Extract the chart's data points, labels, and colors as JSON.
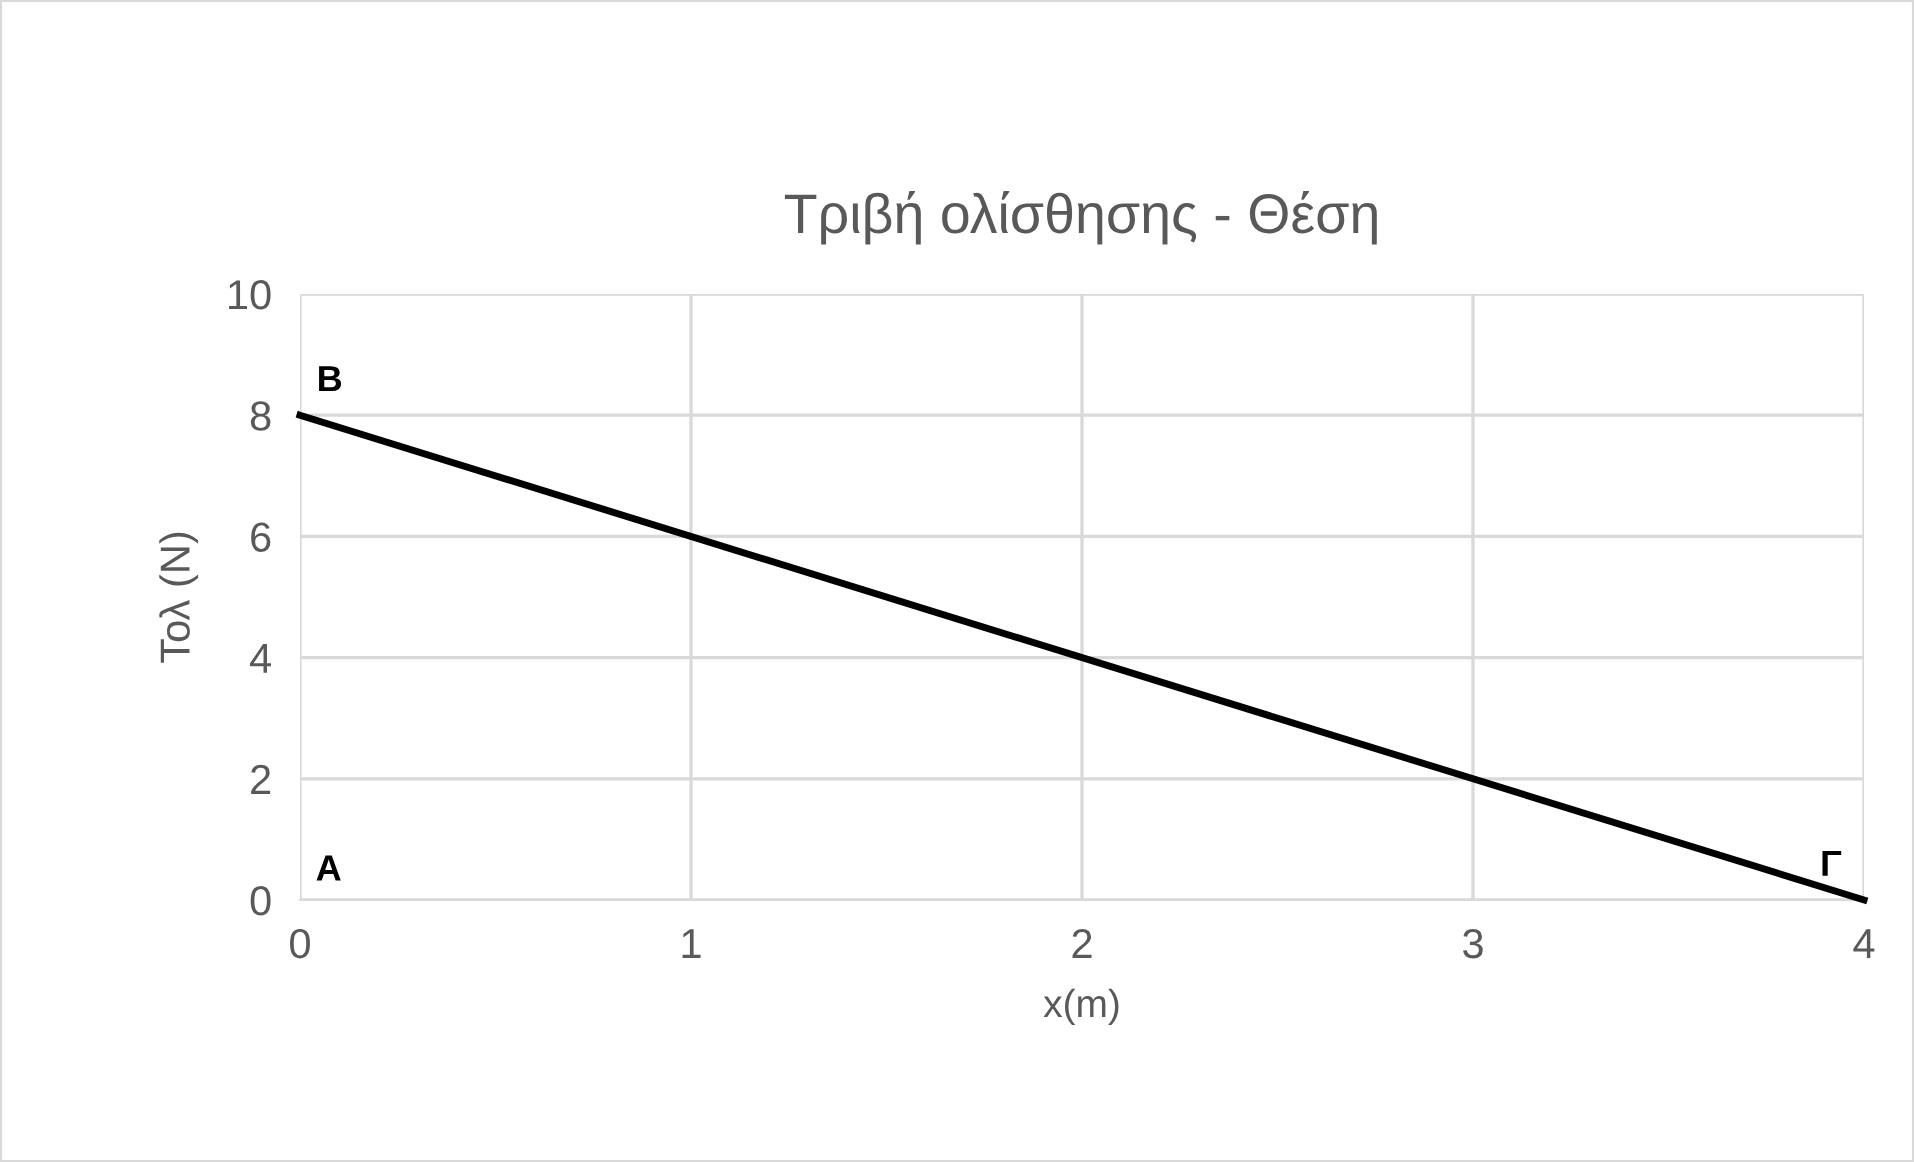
{
  "chart_data": {
    "type": "line",
    "title": "Τριβή ολίσθησης - Θέση",
    "xlabel": "x(m)",
    "ylabel": "Τολ (N)",
    "x": [
      0,
      4
    ],
    "series": [
      {
        "color": "#000000",
        "values": [
          8,
          0
        ]
      }
    ],
    "xlim": [
      0,
      4
    ],
    "ylim": [
      0,
      10
    ],
    "xticks": [
      0,
      1,
      2,
      3,
      4
    ],
    "yticks": [
      0,
      2,
      4,
      6,
      8,
      10
    ],
    "grid": true,
    "marker": "none",
    "line_style": "solid",
    "annotations": [
      {
        "text": "B",
        "x": 0,
        "y": 8
      },
      "A",
      {
        "text": "Γ",
        "x": 4,
        "y": 0
      }
    ]
  }
}
